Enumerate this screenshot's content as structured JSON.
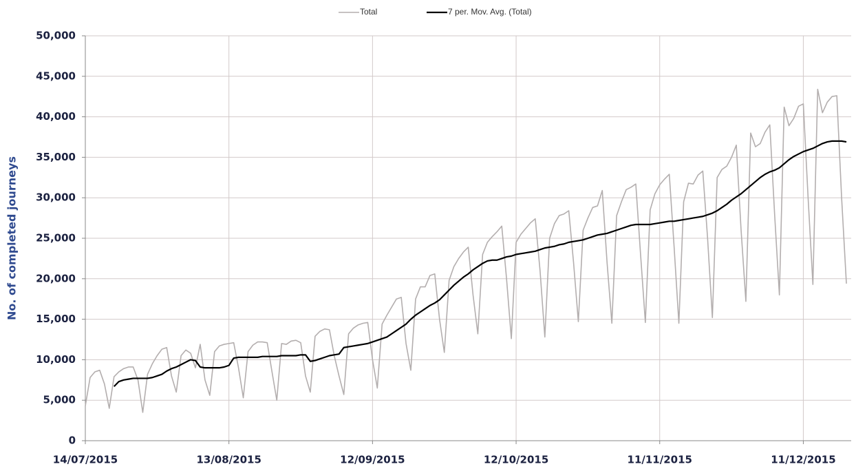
{
  "chart_data": {
    "type": "line",
    "y_label": "No. of completed journeys",
    "x": [
      "14/07/2015",
      "15/07/2015",
      "16/07/2015",
      "17/07/2015",
      "18/07/2015",
      "19/07/2015",
      "20/07/2015",
      "21/07/2015",
      "22/07/2015",
      "23/07/2015",
      "24/07/2015",
      "25/07/2015",
      "26/07/2015",
      "27/07/2015",
      "28/07/2015",
      "29/07/2015",
      "30/07/2015",
      "31/07/2015",
      "01/08/2015",
      "02/08/2015",
      "03/08/2015",
      "04/08/2015",
      "05/08/2015",
      "06/08/2015",
      "07/08/2015",
      "08/08/2015",
      "09/08/2015",
      "10/08/2015",
      "11/08/2015",
      "12/08/2015",
      "13/08/2015",
      "14/08/2015",
      "15/08/2015",
      "16/08/2015",
      "17/08/2015",
      "18/08/2015",
      "19/08/2015",
      "20/08/2015",
      "21/08/2015",
      "22/08/2015",
      "23/08/2015",
      "24/08/2015",
      "25/08/2015",
      "26/08/2015",
      "27/08/2015",
      "28/08/2015",
      "29/08/2015",
      "30/08/2015",
      "31/08/2015",
      "01/09/2015",
      "02/09/2015",
      "03/09/2015",
      "04/09/2015",
      "05/09/2015",
      "06/09/2015",
      "07/09/2015",
      "08/09/2015",
      "09/09/2015",
      "10/09/2015",
      "11/09/2015",
      "12/09/2015",
      "13/09/2015",
      "14/09/2015",
      "15/09/2015",
      "16/09/2015",
      "17/09/2015",
      "18/09/2015",
      "19/09/2015",
      "20/09/2015",
      "21/09/2015",
      "22/09/2015",
      "23/09/2015",
      "24/09/2015",
      "25/09/2015",
      "26/09/2015",
      "27/09/2015",
      "28/09/2015",
      "29/09/2015",
      "30/09/2015",
      "01/10/2015",
      "02/10/2015",
      "03/10/2015",
      "04/10/2015",
      "05/10/2015",
      "06/10/2015",
      "07/10/2015",
      "08/10/2015",
      "09/10/2015",
      "10/10/2015",
      "11/10/2015",
      "12/10/2015",
      "13/10/2015",
      "14/10/2015",
      "15/10/2015",
      "16/10/2015",
      "17/10/2015",
      "18/10/2015",
      "19/10/2015",
      "20/10/2015",
      "21/10/2015",
      "22/10/2015",
      "23/10/2015",
      "24/10/2015",
      "25/10/2015",
      "26/10/2015",
      "27/10/2015",
      "28/10/2015",
      "29/10/2015",
      "30/10/2015",
      "31/10/2015",
      "01/11/2015",
      "02/11/2015",
      "03/11/2015",
      "04/11/2015",
      "05/11/2015",
      "06/11/2015",
      "07/11/2015",
      "08/11/2015",
      "09/11/2015",
      "10/11/2015",
      "11/11/2015",
      "12/11/2015",
      "13/11/2015",
      "14/11/2015",
      "15/11/2015",
      "16/11/2015",
      "17/11/2015",
      "18/11/2015",
      "19/11/2015",
      "20/11/2015",
      "21/11/2015",
      "22/11/2015",
      "23/11/2015",
      "24/11/2015",
      "25/11/2015",
      "26/11/2015",
      "27/11/2015",
      "28/11/2015",
      "29/11/2015",
      "30/11/2015",
      "01/12/2015",
      "02/12/2015",
      "03/12/2015",
      "04/12/2015",
      "05/12/2015",
      "06/12/2015",
      "07/12/2015",
      "08/12/2015",
      "09/12/2015",
      "10/12/2015",
      "11/12/2015",
      "12/12/2015",
      "13/12/2015",
      "14/12/2015",
      "15/12/2015",
      "16/12/2015",
      "17/12/2015",
      "18/12/2015",
      "19/12/2015",
      "20/12/2015"
    ],
    "series": [
      {
        "name": "Total",
        "color": "#b3aeae",
        "values": [
          4300,
          7800,
          8500,
          8700,
          7000,
          4000,
          7900,
          8500,
          8900,
          9100,
          9100,
          7500,
          3500,
          8200,
          9500,
          10500,
          11300,
          11500,
          8000,
          6000,
          10500,
          11200,
          10800,
          9000,
          11900,
          7500,
          5600,
          11000,
          11700,
          11900,
          12000,
          12100,
          9000,
          5300,
          11000,
          11800,
          12200,
          12200,
          12100,
          8500,
          5000,
          12000,
          11900,
          12300,
          12400,
          12100,
          8000,
          6000,
          12900,
          13500,
          13800,
          13700,
          10500,
          8000,
          5700,
          13200,
          13900,
          14300,
          14500,
          14600,
          10000,
          6500,
          14400,
          15500,
          16500,
          17500,
          17700,
          12000,
          8700,
          17500,
          19000,
          19000,
          20400,
          20600,
          15000,
          10900,
          19800,
          21500,
          22500,
          23300,
          23900,
          18000,
          13200,
          23000,
          24500,
          25200,
          25800,
          26500,
          20000,
          12600,
          24500,
          25500,
          26200,
          26900,
          27400,
          21000,
          12800,
          25000,
          26800,
          27800,
          28000,
          28400,
          22000,
          14700,
          26000,
          27500,
          28800,
          29000,
          30900,
          22000,
          14500,
          27800,
          29500,
          31000,
          31300,
          31700,
          23000,
          14600,
          28500,
          30500,
          31600,
          32300,
          32900,
          24000,
          14500,
          29500,
          31800,
          31700,
          32800,
          33300,
          25000,
          15200,
          32500,
          33500,
          33900,
          35000,
          36500,
          26000,
          17200,
          38000,
          36300,
          36700,
          38100,
          39000,
          28000,
          18000,
          41200,
          38900,
          39800,
          41300,
          41600,
          30000,
          19300,
          43400,
          40500,
          41800,
          42500,
          42600,
          30000,
          19400
        ]
      },
      {
        "name": "7 per. Mov. Avg. (Total)",
        "color": "#000000",
        "values": [
          null,
          null,
          null,
          null,
          null,
          null,
          6700,
          7300,
          7500,
          7600,
          7700,
          7700,
          7700,
          7700,
          7800,
          8000,
          8200,
          8600,
          8900,
          9100,
          9400,
          9700,
          10000,
          9900,
          9100,
          9000,
          9000,
          9000,
          9000,
          9100,
          9300,
          10200,
          10300,
          10300,
          10300,
          10300,
          10300,
          10400,
          10400,
          10400,
          10400,
          10500,
          10500,
          10500,
          10500,
          10600,
          10600,
          9800,
          9900,
          10100,
          10300,
          10500,
          10600,
          10700,
          11500,
          11600,
          11700,
          11800,
          11900,
          12000,
          12200,
          12400,
          12600,
          12800,
          13200,
          13600,
          14000,
          14400,
          15000,
          15500,
          15900,
          16300,
          16700,
          17000,
          17400,
          18000,
          18600,
          19200,
          19700,
          20200,
          20600,
          21100,
          21500,
          21900,
          22200,
          22300,
          22300,
          22500,
          22700,
          22800,
          23000,
          23100,
          23200,
          23300,
          23400,
          23600,
          23800,
          23900,
          24000,
          24200,
          24300,
          24500,
          24600,
          24700,
          24800,
          25000,
          25200,
          25400,
          25500,
          25600,
          25800,
          26000,
          26200,
          26400,
          26600,
          26700,
          26700,
          26700,
          26700,
          26800,
          26900,
          27000,
          27100,
          27100,
          27200,
          27300,
          27400,
          27500,
          27600,
          27700,
          27900,
          28100,
          28400,
          28800,
          29200,
          29700,
          30100,
          30500,
          31000,
          31500,
          32000,
          32500,
          32900,
          33200,
          33400,
          33700,
          34200,
          34700,
          35100,
          35400,
          35700,
          35900,
          36100,
          36400,
          36700,
          36900,
          37000,
          37000,
          37000,
          36900
        ]
      }
    ],
    "xlim": [
      "14/07/2015",
      "21/12/2015"
    ],
    "xticks": [
      "14/07/2015",
      "13/08/2015",
      "12/09/2015",
      "12/10/2015",
      "11/11/2015",
      "11/12/2015"
    ],
    "ylim": [
      0,
      50000
    ],
    "yticks": [
      0,
      {
        "value": 5000,
        "label": "5,000"
      },
      {
        "value": 10000,
        "label": "10,000"
      },
      {
        "value": 15000,
        "label": "15,000"
      },
      {
        "value": 20000,
        "label": "20,000"
      },
      {
        "value": 25000,
        "label": "25,000"
      },
      {
        "value": 30000,
        "label": "30,000"
      },
      {
        "value": 35000,
        "label": "35,000"
      },
      {
        "value": 40000,
        "label": "40,000"
      },
      {
        "value": 45000,
        "label": "45,000"
      },
      {
        "value": 50000,
        "label": "50,000"
      }
    ],
    "grid": true,
    "legend": "top"
  }
}
